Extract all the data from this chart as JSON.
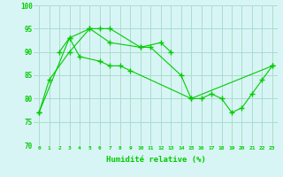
{
  "line1_points": [
    0,
    1,
    3,
    5,
    6,
    7,
    10,
    12,
    13
  ],
  "line1_vals": [
    77,
    84,
    90,
    95,
    95,
    95,
    91,
    92,
    90
  ],
  "line2_points": [
    2,
    3,
    5,
    7,
    10,
    11,
    14,
    15,
    23
  ],
  "line2_vals": [
    90,
    93,
    95,
    92,
    91,
    91,
    85,
    80,
    87
  ],
  "line3_points": [
    0,
    3,
    4,
    6,
    7,
    8,
    9,
    15,
    16,
    17,
    18,
    19,
    20,
    21,
    22,
    23
  ],
  "line3_vals": [
    77,
    93,
    89,
    88,
    87,
    87,
    86,
    80,
    80,
    81,
    80,
    77,
    78,
    81,
    84,
    87
  ],
  "line_color": "#00cc00",
  "bg_color": "#d8f5f5",
  "grid_color": "#aaddcc",
  "xlabel": "Humidité relative (%)",
  "ylim": [
    70,
    100
  ],
  "xlim": [
    -0.5,
    23.5
  ],
  "yticks": [
    70,
    75,
    80,
    85,
    90,
    95,
    100
  ],
  "xticks": [
    0,
    1,
    2,
    3,
    4,
    5,
    6,
    7,
    8,
    9,
    10,
    11,
    12,
    13,
    14,
    15,
    16,
    17,
    18,
    19,
    20,
    21,
    22,
    23
  ]
}
